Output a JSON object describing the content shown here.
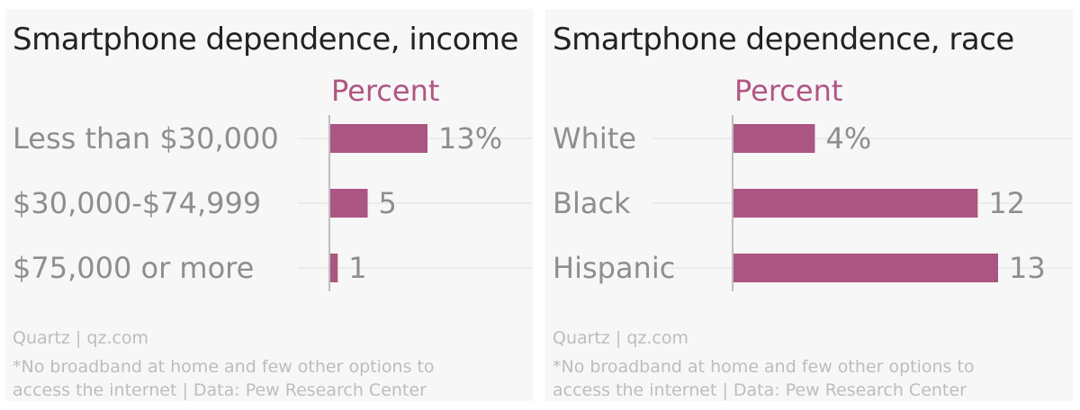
{
  "chart_data": [
    {
      "type": "bar",
      "orientation": "horizontal",
      "title": "Smartphone dependence, income",
      "unit_label": "Percent",
      "categories": [
        "Less than $30,000",
        "$30,000-$74,999",
        "$75,000 or more"
      ],
      "values": [
        13,
        5,
        1
      ],
      "value_labels": [
        "13%",
        "5",
        "1"
      ],
      "xlim": [
        0,
        13
      ],
      "source": "Quartz | qz.com",
      "note": [
        "*No broadband at home and few other options to",
        "access the internet | Data: Pew Research Center"
      ]
    },
    {
      "type": "bar",
      "orientation": "horizontal",
      "title": "Smartphone dependence, race",
      "unit_label": "Percent",
      "categories": [
        "White",
        "Black",
        "Hispanic"
      ],
      "values": [
        4,
        12,
        13
      ],
      "value_labels": [
        "4%",
        "12",
        "13"
      ],
      "xlim": [
        0,
        13
      ],
      "source": "Quartz | qz.com",
      "note": [
        "*No broadband at home and few other options to",
        "access the internet | Data: Pew Research Center"
      ]
    }
  ],
  "colors": {
    "bar": "#ab5682",
    "unit_label": "#b05683",
    "category_text": "#8e8e8e",
    "title_text": "#222222",
    "footer_text": "#bdbdbd",
    "gridline": "#e2e2e2",
    "axis": "#9a9a9a"
  }
}
